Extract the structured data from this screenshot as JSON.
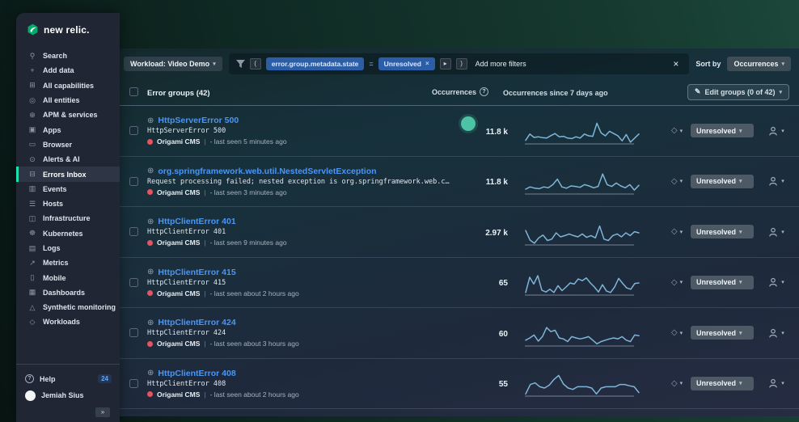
{
  "brand": {
    "name": "new relic."
  },
  "sidebar": {
    "items": [
      {
        "label": "Search",
        "icon": "⚲",
        "icon_name": "search-icon",
        "selected": false
      },
      {
        "label": "Add data",
        "icon": "+",
        "icon_name": "add-data-icon",
        "selected": false
      },
      {
        "label": "All capabilities",
        "icon": "⊞",
        "icon_name": "all-capabilities-icon",
        "selected": false
      },
      {
        "label": "All entities",
        "icon": "◎",
        "icon_name": "all-entities-icon",
        "selected": false
      },
      {
        "label": "APM & services",
        "icon": "⊕",
        "icon_name": "apm-services-icon",
        "selected": false
      },
      {
        "label": "Apps",
        "icon": "▣",
        "icon_name": "apps-icon",
        "selected": false
      },
      {
        "label": "Browser",
        "icon": "▭",
        "icon_name": "browser-icon",
        "selected": false
      },
      {
        "label": "Alerts & AI",
        "icon": "⊙",
        "icon_name": "alerts-ai-icon",
        "selected": false
      },
      {
        "label": "Errors Inbox",
        "icon": "⊟",
        "icon_name": "errors-inbox-icon",
        "selected": true
      },
      {
        "label": "Events",
        "icon": "▥",
        "icon_name": "events-icon",
        "selected": false
      },
      {
        "label": "Hosts",
        "icon": "☰",
        "icon_name": "hosts-icon",
        "selected": false
      },
      {
        "label": "Infrastructure",
        "icon": "◫",
        "icon_name": "infrastructure-icon",
        "selected": false
      },
      {
        "label": "Kubernetes",
        "icon": "☸",
        "icon_name": "kubernetes-icon",
        "selected": false
      },
      {
        "label": "Logs",
        "icon": "▤",
        "icon_name": "logs-icon",
        "selected": false
      },
      {
        "label": "Metrics",
        "icon": "↗",
        "icon_name": "metrics-icon",
        "selected": false
      },
      {
        "label": "Mobile",
        "icon": "▯",
        "icon_name": "mobile-icon",
        "selected": false
      },
      {
        "label": "Dashboards",
        "icon": "▦",
        "icon_name": "dashboards-icon",
        "selected": false
      },
      {
        "label": "Synthetic monitoring",
        "icon": "△",
        "icon_name": "synthetic-monitoring-icon",
        "selected": false
      },
      {
        "label": "Workloads",
        "icon": "◇",
        "icon_name": "workloads-icon",
        "selected": false
      }
    ],
    "help": {
      "label": "Help",
      "icon": "?",
      "badge": "24"
    },
    "user": {
      "name": "Jemiah Sius"
    },
    "collapse_glyph": "»"
  },
  "filter_bar": {
    "workload_label": "Workload: Video Demo",
    "chevron": "▾",
    "open_paren": "(",
    "field_chip": "error.group.metadata.state",
    "operator": "=",
    "value_chip": "Unresolved",
    "remove_x": "×",
    "play_btn": "▸",
    "close_paren": ")",
    "add_more": "Add more filters",
    "clear_x": "×",
    "sort_by_label": "Sort by",
    "sort_value": "Occurrences"
  },
  "table": {
    "header": {
      "groups": "Error groups (42)",
      "occurrences": "Occurrences",
      "occurrences_help": "?",
      "since": "Occurrences since 7 days ago",
      "edit_icon": "✎",
      "edit_groups": "Edit groups (0 of 42)",
      "chevron": "▾"
    },
    "meta_divider": "|",
    "row_controls": {
      "globe": "⊕",
      "state_icon": "◇",
      "chevron": "▾"
    },
    "rows": [
      {
        "title": "HttpServerError 500",
        "subtitle": "HttpServerError 500",
        "entity": "Origami CMS",
        "last_seen": "- last seen 5 minutes ago",
        "count": "11.8 k",
        "status": "Unresolved",
        "spark": [
          12,
          40,
          25,
          28,
          24,
          22,
          33,
          42,
          28,
          30,
          22,
          20,
          28,
          22,
          40,
          32,
          30,
          88,
          45,
          32,
          52,
          42,
          32,
          10,
          38,
          4,
          22,
          40
        ]
      },
      {
        "title": "org.springframework.web.util.NestedServletException",
        "subtitle": "Request processing failed; nested exception is org.springframework.web.client.ResourceAccess…",
        "entity": "Origami CMS",
        "last_seen": "- last seen 3 minutes ago",
        "count": "11.8 k",
        "status": "Unresolved",
        "spark": [
          18,
          28,
          22,
          20,
          28,
          24,
          38,
          62,
          28,
          22,
          32,
          30,
          26,
          38,
          32,
          24,
          30,
          85,
          38,
          30,
          45,
          32,
          24,
          38,
          14,
          35
        ]
      },
      {
        "title": "HttpClientError 401",
        "subtitle": "HttpClientError 401",
        "entity": "Origami CMS",
        "last_seen": "- last seen 9 minutes ago",
        "count": "2.97 k",
        "status": "Unresolved",
        "spark": [
          60,
          18,
          4,
          28,
          40,
          16,
          22,
          50,
          32,
          38,
          45,
          38,
          32,
          45,
          30,
          38,
          28,
          80,
          22,
          16,
          38,
          45,
          32,
          50,
          38,
          55,
          50
        ]
      },
      {
        "title": "HttpClientError 415",
        "subtitle": "HttpClientError 415",
        "entity": "Origami CMS",
        "last_seen": "- last seen about 2 hours ago",
        "count": "65",
        "status": "Unresolved",
        "spark": [
          8,
          75,
          45,
          82,
          18,
          10,
          22,
          8,
          38,
          16,
          32,
          50,
          45,
          68,
          60,
          72,
          50,
          32,
          10,
          42,
          14,
          8,
          32,
          70,
          48,
          28,
          22,
          48,
          50
        ]
      },
      {
        "title": "HttpClientError 424",
        "subtitle": "HttpClientError 424",
        "entity": "Origami CMS",
        "last_seen": "- last seen about 3 hours ago",
        "count": "60",
        "status": "Unresolved",
        "spark": [
          22,
          32,
          45,
          18,
          38,
          78,
          60,
          66,
          32,
          28,
          16,
          38,
          32,
          28,
          32,
          38,
          22,
          6,
          16,
          22,
          28,
          32,
          28,
          38,
          22,
          16,
          45,
          42
        ]
      },
      {
        "title": "HttpClientError 408",
        "subtitle": "HttpClientError 408",
        "entity": "Origami CMS",
        "last_seen": "- last seen about 2 hours ago",
        "count": "55",
        "status": "Unresolved",
        "spark": [
          6,
          48,
          55,
          38,
          32,
          45,
          70,
          88,
          50,
          32,
          26,
          38,
          38,
          38,
          32,
          6,
          32,
          38,
          38,
          38,
          48,
          48,
          42,
          38,
          12
        ]
      }
    ]
  },
  "colors": {
    "accent_teal": "#1de0b1",
    "link_blue": "#4b96f4",
    "error_red": "#e25563",
    "spark_blue": "#7fb5d6",
    "spark_baseline": "#8b99ab",
    "cursor_teal": "#4cc3a5"
  }
}
